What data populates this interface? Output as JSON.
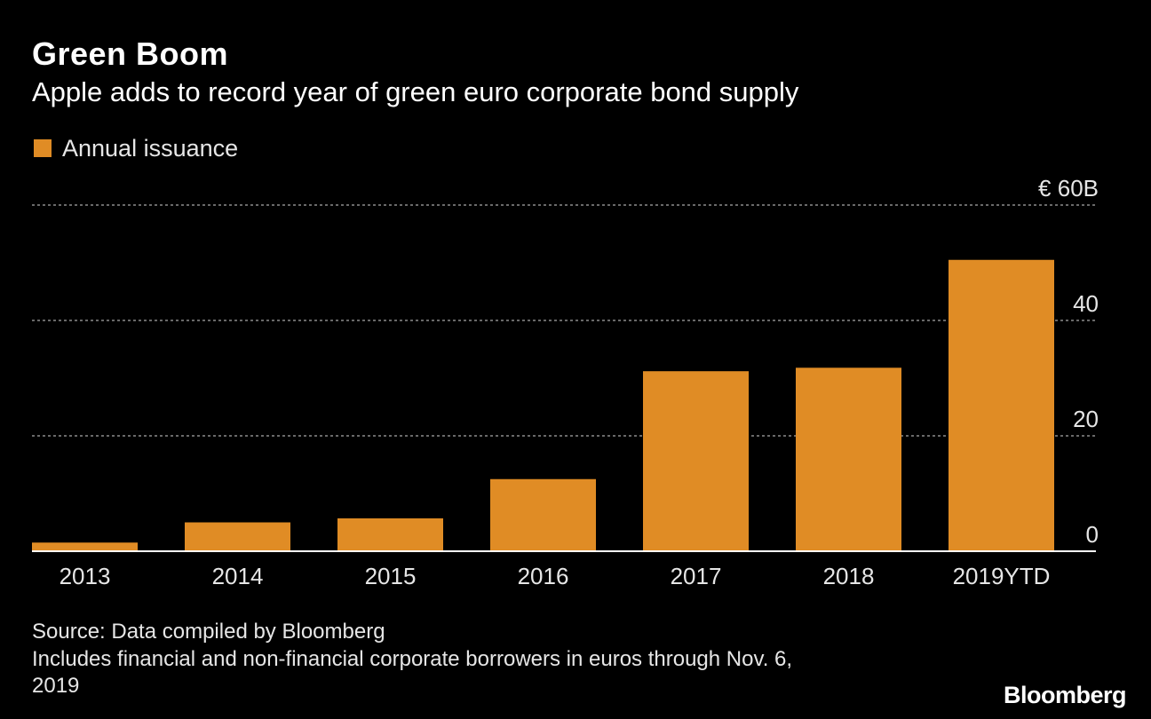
{
  "header": {
    "title": "Green Boom",
    "subtitle": "Apple adds to record year of green euro corporate bond supply"
  },
  "legend": {
    "label": "Annual issuance"
  },
  "footer": {
    "source": "Source: Data compiled by Bloomberg",
    "note_line1": "Includes financial and non-financial corporate borrowers in euros through Nov. 6,",
    "note_line2": "2019",
    "brand": "Bloomberg"
  },
  "colors": {
    "background": "#000000",
    "bar": "#e08c25",
    "text": "#ffffff",
    "muted_text": "#e6e6e6",
    "gridline": "#8c8c8c"
  },
  "chart_data": {
    "type": "bar",
    "title": "Green Boom",
    "subtitle": "Apple adds to record year of green euro corporate bond supply",
    "categories": [
      "2013",
      "2014",
      "2015",
      "2016",
      "2017",
      "2018",
      "2019YTD"
    ],
    "series": [
      {
        "name": "Annual issuance",
        "values": [
          1.5,
          5,
          5.7,
          12.5,
          31.2,
          31.8,
          50.5
        ]
      }
    ],
    "ylim": [
      0,
      60
    ],
    "yticks": [
      0,
      20,
      40,
      60
    ],
    "ytick_labels": [
      "0",
      "20",
      "40",
      "€ 60B"
    ],
    "y_axis_side": "right",
    "grid": "horizontal dashed",
    "legend_position": "top-left"
  }
}
